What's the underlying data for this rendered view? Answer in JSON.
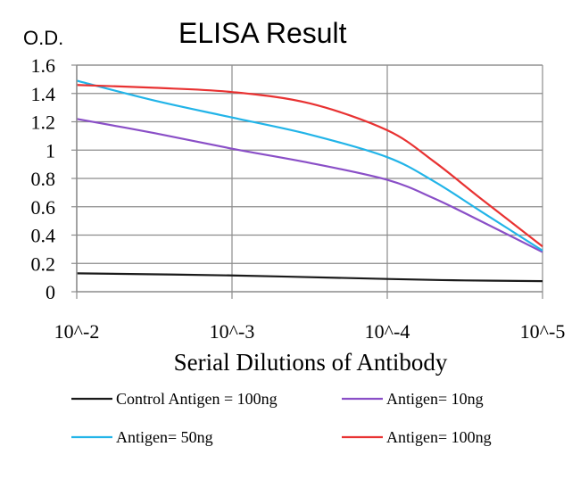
{
  "chart_data": {
    "type": "line",
    "title": "ELISA Result",
    "ylabel": "O.D.",
    "xlabel": "Serial Dilutions of Antibody",
    "categories": [
      "10^-2",
      "10^-3",
      "10^-4",
      "10^-5"
    ],
    "ylim": [
      0,
      1.6
    ],
    "yticks": [
      0,
      0.2,
      0.4,
      0.6,
      0.8,
      1,
      1.2,
      1.4,
      1.6
    ],
    "ytick_labels": [
      "0",
      "0.2",
      "0.4",
      "0.6",
      "0.8",
      "1",
      "1.2",
      "1.4",
      "1.6"
    ],
    "grid": true,
    "legend_position": "bottom",
    "series": [
      {
        "name": "Control Antigen = 100ng",
        "color": "#1a1a1a",
        "points": [
          [
            0,
            0.13
          ],
          [
            1,
            0.115
          ],
          [
            2,
            0.09
          ],
          [
            2.5,
            0.08
          ],
          [
            3,
            0.075
          ]
        ]
      },
      {
        "name": "Antigen= 10ng",
        "color": "#8a4fc7",
        "points": [
          [
            0,
            1.22
          ],
          [
            0.5,
            1.12
          ],
          [
            1,
            1.01
          ],
          [
            1.5,
            0.91
          ],
          [
            2,
            0.79
          ],
          [
            2.3,
            0.66
          ],
          [
            2.6,
            0.5
          ],
          [
            3,
            0.28
          ]
        ]
      },
      {
        "name": "Antigen= 50ng",
        "color": "#22b4e8",
        "points": [
          [
            0,
            1.49
          ],
          [
            0.5,
            1.35
          ],
          [
            1,
            1.23
          ],
          [
            1.5,
            1.11
          ],
          [
            2,
            0.95
          ],
          [
            2.3,
            0.78
          ],
          [
            2.6,
            0.57
          ],
          [
            3,
            0.29
          ]
        ]
      },
      {
        "name": "Antigen= 100ng",
        "color": "#e83232",
        "points": [
          [
            0,
            1.46
          ],
          [
            0.5,
            1.44
          ],
          [
            1,
            1.41
          ],
          [
            1.5,
            1.33
          ],
          [
            2,
            1.14
          ],
          [
            2.3,
            0.92
          ],
          [
            2.6,
            0.66
          ],
          [
            3,
            0.32
          ]
        ]
      }
    ]
  }
}
